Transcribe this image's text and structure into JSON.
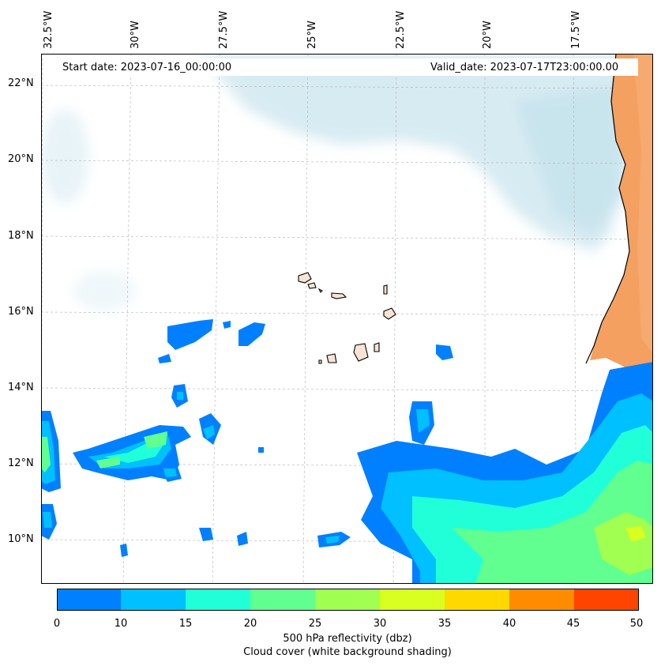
{
  "map": {
    "start_date": "Start date: 2023-07-16_00:00:00",
    "valid_date": "Valid_date: 2023-07-17T23:00:00.00",
    "longitude_labels": [
      "32.5°W",
      "30°W",
      "27.5°W",
      "25°W",
      "22.5°W",
      "20°W",
      "17.5°W"
    ],
    "latitude_labels": [
      "22°N",
      "20°N",
      "18°N",
      "16°N",
      "14°N",
      "12°N",
      "10°N"
    ]
  },
  "colorbar": {
    "ticks": [
      "0",
      "10",
      "15",
      "20",
      "25",
      "30",
      "35",
      "40",
      "45",
      "50"
    ],
    "colors": [
      "#0080ff",
      "#00c0ff",
      "#20ffd8",
      "#60ff90",
      "#a0ff50",
      "#d8ff20",
      "#ffd800",
      "#ff8c00",
      "#ff4400"
    ],
    "label_line1": "500 hPa reflectivity (dbz)",
    "label_line2": "Cloud cover (white background shading)"
  },
  "colors": {
    "land": "#f4a060",
    "cloud": "#b8dce8",
    "coast": "#000000"
  }
}
